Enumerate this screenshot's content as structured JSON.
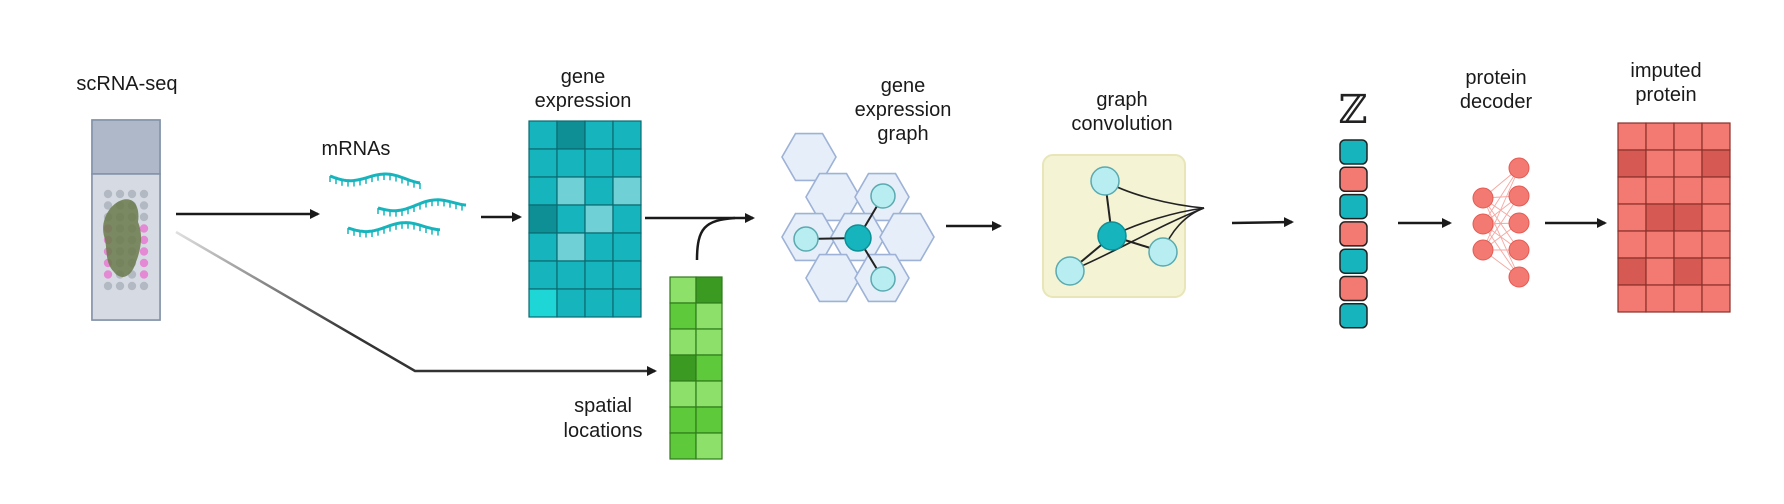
{
  "labels": {
    "scrna": "scRNA-seq",
    "mrnas": "mRNAs",
    "gene_expression_1": "gene",
    "gene_expression_2": "expression",
    "spatial_1": "spatial",
    "spatial_2": "locations",
    "graph_1": "gene",
    "graph_2": "expression",
    "graph_3": "graph",
    "conv_1": "graph",
    "conv_2": "convolution",
    "latent": "ℤ",
    "decoder_1": "protein",
    "decoder_2": "decoder",
    "imputed_1": "imputed",
    "imputed_2": "protein"
  },
  "colors": {
    "teal": "#16b5bd",
    "teal_dark": "#0e8f96",
    "teal_light": "#6fd0d5",
    "salmon": "#f27a72",
    "salmon_dark": "#d65a53",
    "green": "#8de06a",
    "green_mid": "#5ec93b",
    "green_dark": "#3a9a22",
    "node_light": "#b8eef2",
    "hex_fill": "#e6eef9",
    "hex_stroke": "#9db2d6",
    "conv_bg": "#f4f3d4"
  },
  "matrices": {
    "gene_expression": [
      [
        1,
        2,
        1,
        1
      ],
      [
        1,
        1,
        1,
        1
      ],
      [
        1,
        3,
        1,
        3
      ],
      [
        2,
        1,
        3,
        1
      ],
      [
        1,
        3,
        1,
        1
      ],
      [
        1,
        1,
        1,
        1
      ],
      [
        4,
        1,
        1,
        1
      ]
    ],
    "spatial": [
      [
        1,
        3
      ],
      [
        2,
        1
      ],
      [
        1,
        1
      ],
      [
        3,
        2
      ],
      [
        1,
        1
      ],
      [
        2,
        2
      ],
      [
        2,
        1
      ]
    ],
    "imputed": [
      [
        1,
        1,
        1,
        1
      ],
      [
        2,
        1,
        1,
        2
      ],
      [
        1,
        1,
        1,
        1
      ],
      [
        1,
        2,
        2,
        1
      ],
      [
        1,
        1,
        1,
        1
      ],
      [
        2,
        1,
        2,
        1
      ],
      [
        1,
        1,
        1,
        1
      ]
    ],
    "latent_vector": [
      "teal",
      "salmon",
      "teal",
      "salmon",
      "teal",
      "salmon",
      "teal"
    ]
  },
  "icons": {
    "slide": "tissue-slide-icon",
    "mrna": "mrna-strand-icon",
    "graph": "hexagon-graph-icon",
    "network": "neural-network-icon"
  }
}
